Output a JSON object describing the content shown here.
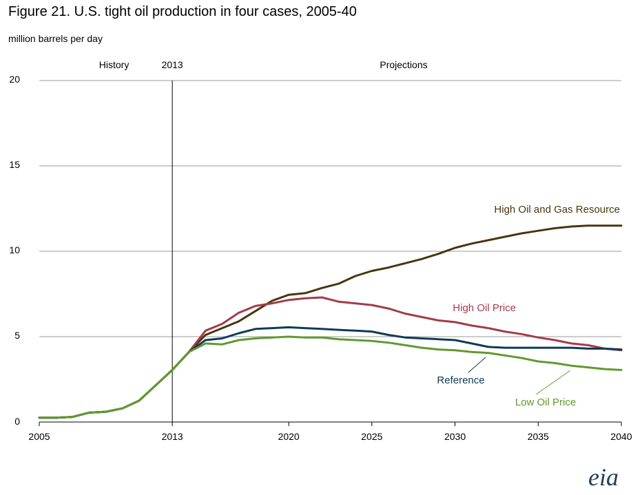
{
  "title": "Figure 21. U.S. tight oil production in four cases, 2005-40",
  "units": "million barrels per day",
  "logo_text": "eia",
  "chart_data": {
    "type": "line",
    "title": "Figure 21. U.S. tight oil production in four cases, 2005-40",
    "ylabel": "million barrels per day",
    "xlim": [
      2005,
      2040
    ],
    "ylim": [
      0,
      20
    ],
    "x_ticks": [
      "2005",
      "2013",
      "2020",
      "2025",
      "2030",
      "2035",
      "2040"
    ],
    "y_ticks": [
      "0",
      "5",
      "10",
      "15",
      "20"
    ],
    "grid": "horizontal",
    "divider": {
      "year": 2013,
      "label": "2013",
      "left_label": "History",
      "right_label": "Projections"
    },
    "series": [
      {
        "name": "High Oil and Gas Resource",
        "color": "#4a3510",
        "x": [
          2005,
          2006,
          2007,
          2008,
          2009,
          2010,
          2011,
          2012,
          2013,
          2014,
          2015,
          2016,
          2017,
          2018,
          2019,
          2020,
          2021,
          2022,
          2023,
          2024,
          2025,
          2026,
          2027,
          2028,
          2029,
          2030,
          2031,
          2032,
          2033,
          2034,
          2035,
          2036,
          2037,
          2038,
          2039,
          2040
        ],
        "values": [
          0.25,
          0.25,
          0.3,
          0.55,
          0.6,
          0.8,
          1.25,
          2.15,
          3.05,
          4.1,
          5.1,
          5.5,
          5.9,
          6.5,
          7.1,
          7.45,
          7.55,
          7.85,
          8.1,
          8.55,
          8.85,
          9.05,
          9.3,
          9.55,
          9.85,
          10.2,
          10.45,
          10.65,
          10.85,
          11.05,
          11.2,
          11.35,
          11.45,
          11.5,
          11.5,
          11.5
        ]
      },
      {
        "name": "High Oil Price",
        "color": "#a53a4a",
        "x": [
          2005,
          2006,
          2007,
          2008,
          2009,
          2010,
          2011,
          2012,
          2013,
          2014,
          2015,
          2016,
          2017,
          2018,
          2019,
          2020,
          2021,
          2022,
          2023,
          2024,
          2025,
          2026,
          2027,
          2028,
          2029,
          2030,
          2031,
          2032,
          2033,
          2034,
          2035,
          2036,
          2037,
          2038,
          2039,
          2040
        ],
        "values": [
          0.25,
          0.25,
          0.3,
          0.55,
          0.6,
          0.8,
          1.25,
          2.15,
          3.05,
          4.1,
          5.35,
          5.75,
          6.4,
          6.8,
          6.95,
          7.15,
          7.25,
          7.3,
          7.05,
          6.95,
          6.85,
          6.65,
          6.35,
          6.15,
          5.95,
          5.85,
          5.65,
          5.5,
          5.3,
          5.15,
          4.95,
          4.8,
          4.6,
          4.5,
          4.3,
          4.2
        ]
      },
      {
        "name": "Reference",
        "color": "#0f3a55",
        "x": [
          2005,
          2006,
          2007,
          2008,
          2009,
          2010,
          2011,
          2012,
          2013,
          2014,
          2015,
          2016,
          2017,
          2018,
          2019,
          2020,
          2021,
          2022,
          2023,
          2024,
          2025,
          2026,
          2027,
          2028,
          2029,
          2030,
          2031,
          2032,
          2033,
          2034,
          2035,
          2036,
          2037,
          2038,
          2039,
          2040
        ],
        "values": [
          0.25,
          0.25,
          0.3,
          0.55,
          0.6,
          0.8,
          1.25,
          2.15,
          3.05,
          4.1,
          4.8,
          4.9,
          5.2,
          5.45,
          5.5,
          5.55,
          5.5,
          5.45,
          5.4,
          5.35,
          5.3,
          5.1,
          4.95,
          4.9,
          4.85,
          4.8,
          4.6,
          4.4,
          4.35,
          4.35,
          4.35,
          4.35,
          4.35,
          4.3,
          4.3,
          4.25
        ]
      },
      {
        "name": "Low Oil Price",
        "color": "#5f9a2e",
        "x": [
          2005,
          2006,
          2007,
          2008,
          2009,
          2010,
          2011,
          2012,
          2013,
          2014,
          2015,
          2016,
          2017,
          2018,
          2019,
          2020,
          2021,
          2022,
          2023,
          2024,
          2025,
          2026,
          2027,
          2028,
          2029,
          2030,
          2031,
          2032,
          2033,
          2034,
          2035,
          2036,
          2037,
          2038,
          2039,
          2040
        ],
        "values": [
          0.25,
          0.25,
          0.3,
          0.55,
          0.6,
          0.8,
          1.25,
          2.15,
          3.05,
          4.1,
          4.6,
          4.55,
          4.8,
          4.9,
          4.95,
          5.0,
          4.95,
          4.95,
          4.85,
          4.8,
          4.75,
          4.65,
          4.5,
          4.35,
          4.25,
          4.2,
          4.1,
          4.05,
          3.9,
          3.75,
          3.55,
          3.45,
          3.3,
          3.2,
          3.1,
          3.05
        ]
      }
    ]
  }
}
